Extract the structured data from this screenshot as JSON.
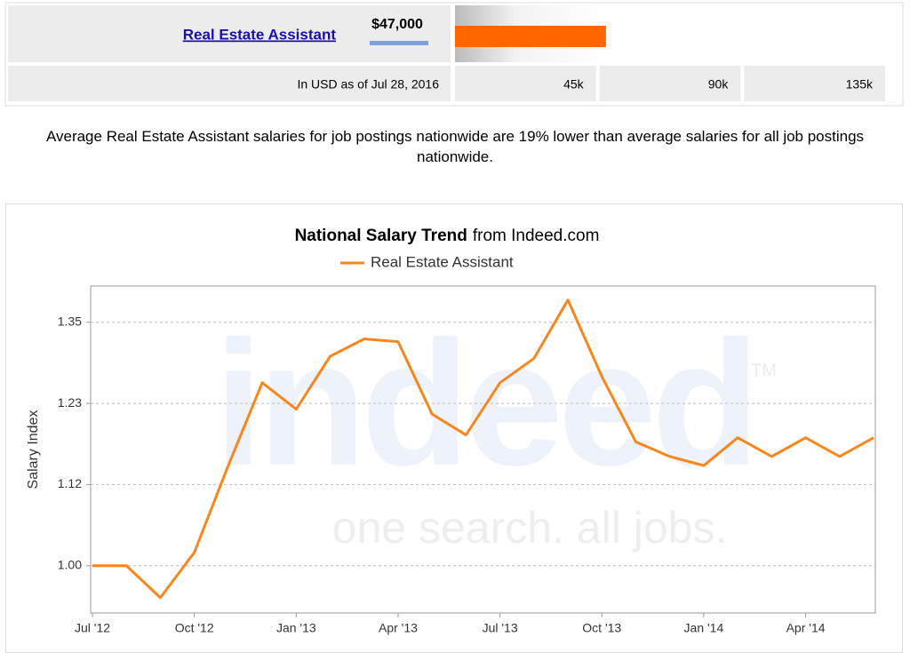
{
  "salary_box": {
    "job_title": "Real Estate Assistant",
    "salary": {
      "value": 47000,
      "label": "$47,000"
    },
    "bar_color": "#ff6600",
    "note": "In USD as of Jul 28, 2016",
    "scale_max": 135000,
    "scale_ticks": [
      {
        "value": 45000,
        "label": "45k"
      },
      {
        "value": 90000,
        "label": "90k"
      },
      {
        "value": 135000,
        "label": "135k"
      }
    ]
  },
  "description": "Average Real Estate Assistant salaries for job postings nationwide are 19% lower than average salaries for all job postings nationwide.",
  "chart_data": {
    "type": "line",
    "title": "National Salary Trend",
    "subtitle": "from Indeed.com",
    "y_label": "Salary Index",
    "watermark": {
      "logo": "indeed",
      "mark": "TM",
      "tagline": "one search. all jobs."
    },
    "categories": [
      "Jul '12",
      null,
      null,
      "Oct '12",
      null,
      null,
      "Jan '13",
      null,
      null,
      "Apr '13",
      null,
      null,
      "Jul '13",
      null,
      null,
      "Oct '13",
      null,
      null,
      "Jan '14",
      null,
      null,
      "Apr '14",
      null,
      null
    ],
    "series": [
      {
        "name": "Real Estate Assistant",
        "color": "#f7861c",
        "values": [
          1.0,
          1.0,
          0.954,
          1.019,
          1.144,
          1.263,
          1.225,
          1.301,
          1.326,
          1.322,
          1.218,
          1.188,
          1.263,
          1.298,
          1.382,
          1.272,
          1.178,
          1.157,
          1.144,
          1.184,
          1.157,
          1.184,
          1.157,
          1.184
        ]
      }
    ],
    "ylim": [
      0.932,
      1.402
    ],
    "yticks": [
      {
        "value": 1.0,
        "label": "1.00"
      },
      {
        "value": 1.1167,
        "label": "1.12"
      },
      {
        "value": 1.2333,
        "label": "1.23"
      },
      {
        "value": 1.35,
        "label": "1.35"
      }
    ],
    "grid": true
  }
}
